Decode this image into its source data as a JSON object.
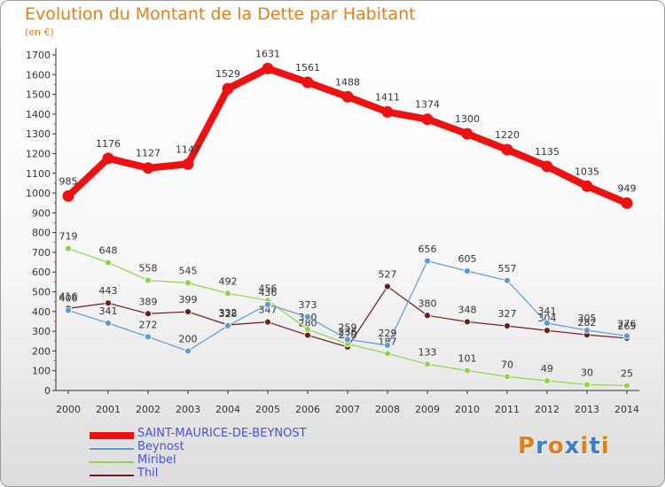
{
  "header": {
    "title": "Evolution du Montant de la Dette par Habitant",
    "subtitle": "(en €)"
  },
  "brand": {
    "name": "Proxiti",
    "colors": [
      "#e0801a",
      "#3a7fd0",
      "#e0801a",
      "#3a7fd0",
      "#e0801a",
      "#3a7fd0",
      "#e0801a"
    ]
  },
  "chart_data": {
    "type": "line",
    "title": "Evolution du Montant de la Dette par Habitant",
    "subtitle": "(en €)",
    "xlabel": "",
    "ylabel": "",
    "x": [
      "2000",
      "2001",
      "2002",
      "2003",
      "2004",
      "2005",
      "2006",
      "2007",
      "2008",
      "2009",
      "2010",
      "2011",
      "2012",
      "2013",
      "2014"
    ],
    "ylim": [
      0,
      1700
    ],
    "yticks": [
      0,
      100,
      200,
      300,
      400,
      500,
      600,
      700,
      800,
      900,
      1000,
      1100,
      1200,
      1300,
      1400,
      1500,
      1600,
      1700
    ],
    "grid": false,
    "legend": "bottom-left",
    "series": [
      {
        "name": "SAINT-MAURICE-DE-BEYNOST",
        "color": "#ee1111",
        "values": [
          985,
          1176,
          1127,
          1147,
          1529,
          1631,
          1561,
          1488,
          1411,
          1374,
          1300,
          1220,
          1135,
          1035,
          949
        ]
      },
      {
        "name": "Beynost",
        "color": "#5b9bd5",
        "values": [
          406,
          341,
          272,
          200,
          328,
          436,
          373,
          259,
          229,
          656,
          605,
          557,
          341,
          305,
          276
        ]
      },
      {
        "name": "Miribel",
        "color": "#8fd44a",
        "values": [
          719,
          648,
          558,
          545,
          492,
          456,
          310,
          236,
          187,
          133,
          101,
          70,
          49,
          30,
          25
        ]
      },
      {
        "name": "Thil",
        "color": "#6b1d1d",
        "values": [
          416,
          443,
          389,
          399,
          332,
          347,
          280,
          220,
          527,
          380,
          348,
          327,
          304,
          282,
          265
        ]
      }
    ]
  }
}
